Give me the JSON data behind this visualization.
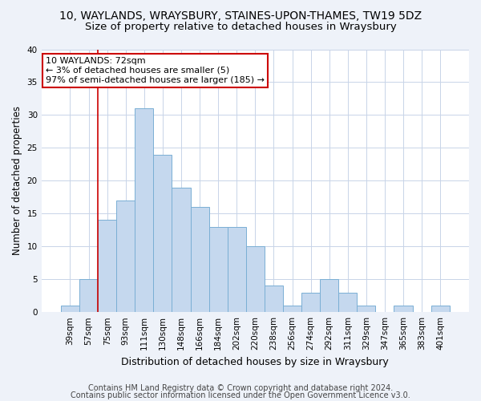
{
  "title1": "10, WAYLANDS, WRAYSBURY, STAINES-UPON-THAMES, TW19 5DZ",
  "title2": "Size of property relative to detached houses in Wraysbury",
  "xlabel": "Distribution of detached houses by size in Wraysbury",
  "ylabel": "Number of detached properties",
  "categories": [
    "39sqm",
    "57sqm",
    "75sqm",
    "93sqm",
    "111sqm",
    "130sqm",
    "148sqm",
    "166sqm",
    "184sqm",
    "202sqm",
    "220sqm",
    "238sqm",
    "256sqm",
    "274sqm",
    "292sqm",
    "311sqm",
    "329sqm",
    "347sqm",
    "365sqm",
    "383sqm",
    "401sqm"
  ],
  "values": [
    1,
    5,
    14,
    17,
    31,
    24,
    19,
    16,
    13,
    13,
    10,
    4,
    1,
    3,
    5,
    3,
    1,
    0,
    1,
    0,
    1
  ],
  "bar_color": "#c5d8ee",
  "bar_edge_color": "#7aafd4",
  "vline_x_index": 1.5,
  "vline_color": "#cc0000",
  "annotation_line1": "10 WAYLANDS: 72sqm",
  "annotation_line2": "← 3% of detached houses are smaller (5)",
  "annotation_line3": "97% of semi-detached houses are larger (185) →",
  "annotation_box_color": "#ffffff",
  "annotation_box_edge": "#cc0000",
  "ylim": [
    0,
    40
  ],
  "yticks": [
    0,
    5,
    10,
    15,
    20,
    25,
    30,
    35,
    40
  ],
  "footer1": "Contains HM Land Registry data © Crown copyright and database right 2024.",
  "footer2": "Contains public sector information licensed under the Open Government Licence v3.0.",
  "bg_color": "#eef2f9",
  "plot_bg_color": "#ffffff",
  "grid_color": "#c8d4e8",
  "title1_fontsize": 10,
  "title2_fontsize": 9.5,
  "xlabel_fontsize": 9,
  "ylabel_fontsize": 8.5,
  "tick_fontsize": 7.5,
  "ann_fontsize": 8,
  "footer_fontsize": 7
}
